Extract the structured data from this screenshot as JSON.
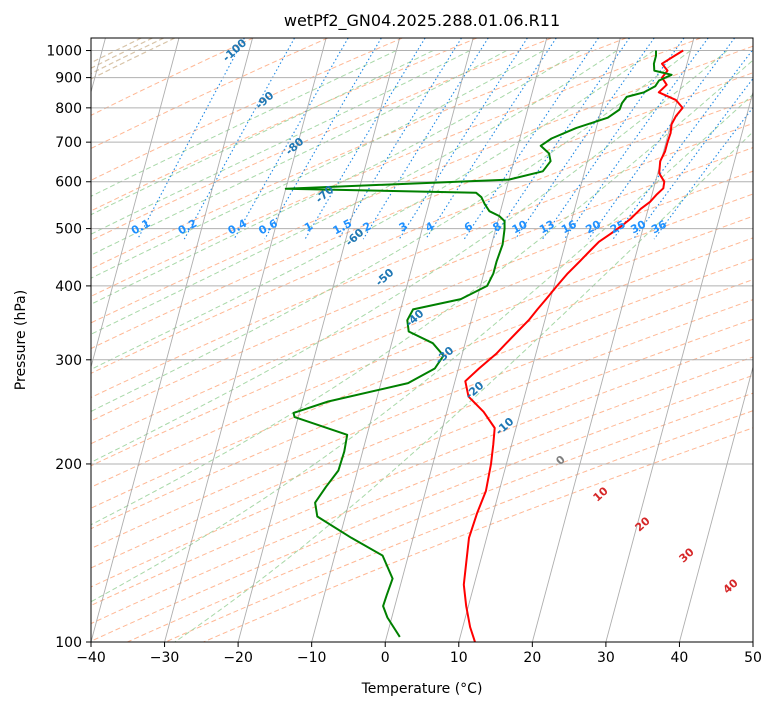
{
  "chart_data": {
    "type": "line",
    "title": "wetPf2_GN04.2025.288.01.06.R11",
    "xlabel": "Temperature (°C)",
    "ylabel": "Pressure (hPa)",
    "xlim": [
      -40,
      50
    ],
    "ylim": [
      1050,
      100
    ],
    "y_scale": "log",
    "x_ticks": [
      "−40",
      "−30",
      "−20",
      "−10",
      "0",
      "10",
      "20",
      "30",
      "40",
      "50"
    ],
    "y_ticks": [
      "100",
      "200",
      "300",
      "400",
      "500",
      "600",
      "700",
      "800",
      "900",
      "1000"
    ],
    "grid": true,
    "series": [
      {
        "role": "temperature",
        "color": "#ff0000",
        "points": [
          [
            19,
            1000
          ],
          [
            17.8,
            975
          ],
          [
            16.6,
            950
          ],
          [
            17.6,
            925
          ],
          [
            17.1,
            900
          ],
          [
            18,
            875
          ],
          [
            17.2,
            850
          ],
          [
            19.8,
            825
          ],
          [
            21,
            800
          ],
          [
            20.4,
            775
          ],
          [
            20.1,
            750
          ],
          [
            20.3,
            725
          ],
          [
            20.2,
            700
          ],
          [
            20.2,
            675
          ],
          [
            19.9,
            650
          ],
          [
            20.2,
            620
          ],
          [
            21.2,
            600
          ],
          [
            21.3,
            585
          ],
          [
            20.6,
            570
          ],
          [
            20,
            555
          ],
          [
            19,
            540
          ],
          [
            18,
            520
          ],
          [
            17,
            505
          ],
          [
            15.8,
            490
          ],
          [
            14.5,
            475
          ],
          [
            13.7,
            460
          ],
          [
            12.6,
            440
          ],
          [
            11.4,
            420
          ],
          [
            10.4,
            400
          ],
          [
            9.4,
            380
          ],
          [
            8.6,
            365
          ],
          [
            7.8,
            350
          ],
          [
            6.7,
            335
          ],
          [
            5.6,
            320
          ],
          [
            4.6,
            307
          ],
          [
            2.8,
            290
          ],
          [
            1.4,
            276
          ],
          [
            2.4,
            260
          ],
          [
            5,
            245
          ],
          [
            7.1,
            230
          ],
          [
            7.5,
            216
          ],
          [
            7.9,
            200
          ],
          [
            8.2,
            180
          ],
          [
            7.8,
            165
          ],
          [
            7.6,
            150
          ],
          [
            8.1,
            137
          ],
          [
            8.6,
            125
          ],
          [
            9.7,
            115
          ],
          [
            11,
            106
          ],
          [
            12.2,
            100
          ]
        ]
      },
      {
        "role": "dewpoint",
        "color": "#008000",
        "points": [
          [
            15.3,
            1000
          ],
          [
            15.5,
            980
          ],
          [
            15.5,
            950
          ],
          [
            15.8,
            925
          ],
          [
            18.3,
            910
          ],
          [
            16.8,
            890
          ],
          [
            16.5,
            870
          ],
          [
            15.2,
            850
          ],
          [
            13,
            835
          ],
          [
            12.6,
            815
          ],
          [
            12.5,
            795
          ],
          [
            11.2,
            770
          ],
          [
            7.3,
            740
          ],
          [
            4.3,
            710
          ],
          [
            3.1,
            690
          ],
          [
            4.5,
            670
          ],
          [
            5,
            650
          ],
          [
            4.3,
            625
          ],
          [
            0,
            605
          ],
          [
            -30,
            584
          ],
          [
            -4,
            575
          ],
          [
            -3.1,
            565
          ],
          [
            -2.4,
            550
          ],
          [
            -1.5,
            535
          ],
          [
            0,
            525
          ],
          [
            0.9,
            515
          ],
          [
            1.2,
            500
          ],
          [
            1.5,
            470
          ],
          [
            1.3,
            440
          ],
          [
            1.3,
            420
          ],
          [
            0.9,
            400
          ],
          [
            -2.2,
            380
          ],
          [
            -8.3,
            365
          ],
          [
            -8.7,
            350
          ],
          [
            -8.1,
            335
          ],
          [
            -4.4,
            320
          ],
          [
            -2.5,
            305
          ],
          [
            -3.2,
            290
          ],
          [
            -6.3,
            274
          ],
          [
            -16.5,
            255
          ],
          [
            -20.8,
            244
          ],
          [
            -20.5,
            240
          ],
          [
            -12.7,
            224
          ],
          [
            -12.5,
            210
          ],
          [
            -12.6,
            195
          ],
          [
            -13.7,
            183
          ],
          [
            -14.6,
            172
          ],
          [
            -13.8,
            163
          ],
          [
            -8.4,
            150
          ],
          [
            -3.5,
            140
          ],
          [
            -1.3,
            128
          ],
          [
            -1.5,
            120
          ],
          [
            -1.6,
            115
          ],
          [
            -0.6,
            110
          ],
          [
            1.8,
            102
          ]
        ]
      }
    ],
    "isotherm_labels": {
      "color": "#ff0000",
      "values": [
        "0",
        "10",
        "20",
        "30",
        "40"
      ]
    },
    "dry_adiabat_labels": {
      "color": "#1f77b4",
      "values": [
        "-100",
        "-90",
        "-80",
        "-70",
        "-60",
        "-50",
        "-40",
        "-30",
        "-20",
        "-10"
      ]
    },
    "mixing_ratio_labels": {
      "color": "#1e90ff",
      "values": [
        "0.1",
        "0.2",
        "0.4",
        "0.6",
        "1",
        "1.5",
        "2",
        "3",
        "4",
        "6",
        "8",
        "10",
        "13",
        "16",
        "20",
        "25",
        "30",
        "36"
      ]
    },
    "freezing_label": "0"
  },
  "colors": {
    "grid": "#b0b0b0",
    "skewed_isotherm": "#9a9a9a",
    "dry_adiabat": "#ffb08a",
    "moist_adiabat": "#9fd49f",
    "mixing_ratio": "#1e88e5"
  }
}
